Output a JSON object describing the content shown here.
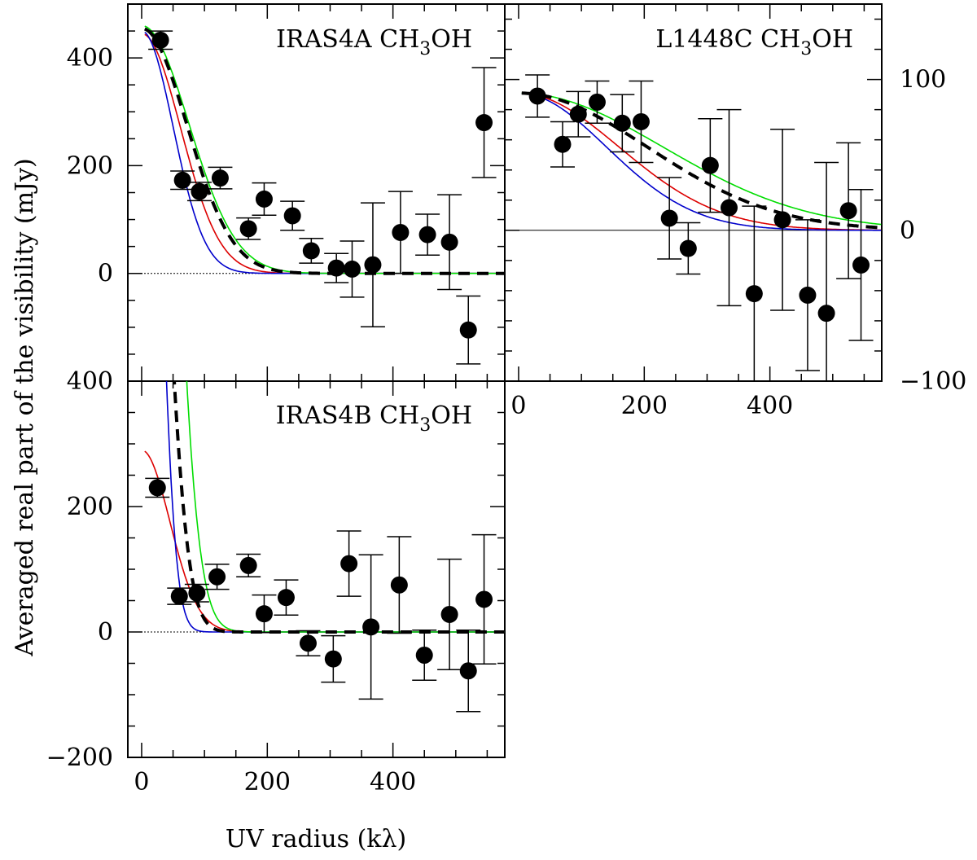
{
  "figure": {
    "ylabel": "Averaged real part of the visibility (mJy)",
    "xlabel": "UV radius (kλ)"
  },
  "colors": {
    "axes": "#000000",
    "points": "#000000",
    "model_red": "#dd0000",
    "model_blue": "#0000cc",
    "model_green": "#00dd00",
    "model_black": "#000000"
  },
  "chart_data": [
    {
      "type": "scatter",
      "panel": "top-left",
      "title_main": "IRAS4A CH",
      "title_sub": "3",
      "title_end": "OH",
      "xlim": [
        -22,
        578
      ],
      "ylim": [
        -200,
        500
      ],
      "x_ticks": [],
      "y_ticks": [
        0,
        200,
        400
      ],
      "y_tick_labels": [
        "0",
        "200",
        "400"
      ],
      "y_label_side": "left",
      "points": [
        {
          "x": 30,
          "y": 433,
          "err": 17
        },
        {
          "x": 65,
          "y": 173,
          "err": 17
        },
        {
          "x": 92,
          "y": 152,
          "err": 17
        },
        {
          "x": 125,
          "y": 177,
          "err": 20
        },
        {
          "x": 170,
          "y": 83,
          "err": 20
        },
        {
          "x": 195,
          "y": 138,
          "err": 30
        },
        {
          "x": 240,
          "y": 107,
          "err": 27
        },
        {
          "x": 270,
          "y": 42,
          "err": 23
        },
        {
          "x": 310,
          "y": 10,
          "err": 27
        },
        {
          "x": 335,
          "y": 8,
          "err": 52
        },
        {
          "x": 368,
          "y": 16,
          "err": 115
        },
        {
          "x": 412,
          "y": 76,
          "err": 76
        },
        {
          "x": 455,
          "y": 72,
          "err": 38
        },
        {
          "x": 490,
          "y": 58,
          "err": 88
        },
        {
          "x": 520,
          "y": -105,
          "err": 63
        },
        {
          "x": 545,
          "y": 280,
          "err": 102
        }
      ],
      "models": [
        {
          "name": "red",
          "amp": 445,
          "sigma": 62
        },
        {
          "name": "blue",
          "amp": 450,
          "sigma": 50
        },
        {
          "name": "green",
          "amp": 460,
          "sigma": 75
        },
        {
          "name": "black-dashed",
          "amp": 455,
          "sigma": 72
        }
      ]
    },
    {
      "type": "scatter",
      "panel": "top-right",
      "title_main": "L1448C CH",
      "title_sub": "3",
      "title_end": "OH",
      "xlim": [
        -22,
        578
      ],
      "ylim": [
        -100,
        150
      ],
      "x_ticks": [
        0,
        200,
        400
      ],
      "x_tick_labels": [
        "0",
        "200",
        "400"
      ],
      "y_ticks": [
        -100,
        0,
        100
      ],
      "y_tick_labels": [
        "−100",
        "0",
        "100"
      ],
      "y_label_side": "right",
      "points": [
        {
          "x": 30,
          "y": 89,
          "err": 14
        },
        {
          "x": 70,
          "y": 57,
          "err": 15
        },
        {
          "x": 95,
          "y": 77,
          "err": 15
        },
        {
          "x": 125,
          "y": 85,
          "err": 14
        },
        {
          "x": 165,
          "y": 71,
          "err": 19
        },
        {
          "x": 195,
          "y": 72,
          "err": 27
        },
        {
          "x": 240,
          "y": 8,
          "err": 27
        },
        {
          "x": 270,
          "y": -12,
          "err": 17
        },
        {
          "x": 305,
          "y": 43,
          "err": 31
        },
        {
          "x": 335,
          "y": 15,
          "err": 65
        },
        {
          "x": 375,
          "y": -42,
          "err": 58
        },
        {
          "x": 420,
          "y": 7,
          "err": 60
        },
        {
          "x": 460,
          "y": -43,
          "err": 50
        },
        {
          "x": 490,
          "y": -55,
          "err": 100
        },
        {
          "x": 525,
          "y": 13,
          "err": 45
        },
        {
          "x": 545,
          "y": -23,
          "err": 50
        }
      ],
      "models": [
        {
          "name": "red",
          "amp": 91,
          "sigma": 160
        },
        {
          "name": "blue",
          "amp": 91,
          "sigma": 140
        },
        {
          "name": "green",
          "amp": 91,
          "sigma": 230
        },
        {
          "name": "black-dashed",
          "amp": 91,
          "sigma": 205
        }
      ]
    },
    {
      "type": "scatter",
      "panel": "bottom-left",
      "title_main": "IRAS4B CH",
      "title_sub": "3",
      "title_end": "OH",
      "xlim": [
        -22,
        578
      ],
      "ylim": [
        -200,
        400
      ],
      "x_ticks": [
        0,
        200,
        400
      ],
      "x_tick_labels": [
        "0",
        "200",
        "400"
      ],
      "y_ticks": [
        -200,
        0,
        200,
        400
      ],
      "y_tick_labels": [
        "−200",
        "0",
        "200",
        "400"
      ],
      "y_label_side": "left",
      "points": [
        {
          "x": 25,
          "y": 230,
          "err": 15
        },
        {
          "x": 60,
          "y": 57,
          "err": 13
        },
        {
          "x": 88,
          "y": 62,
          "err": 14
        },
        {
          "x": 120,
          "y": 88,
          "err": 20
        },
        {
          "x": 170,
          "y": 106,
          "err": 18
        },
        {
          "x": 195,
          "y": 29,
          "err": 30
        },
        {
          "x": 230,
          "y": 55,
          "err": 28
        },
        {
          "x": 265,
          "y": -18,
          "err": 20
        },
        {
          "x": 305,
          "y": -43,
          "err": 37
        },
        {
          "x": 330,
          "y": 109,
          "err": 52
        },
        {
          "x": 365,
          "y": 8,
          "err": 115
        },
        {
          "x": 410,
          "y": 75,
          "err": 77
        },
        {
          "x": 450,
          "y": -37,
          "err": 40
        },
        {
          "x": 490,
          "y": 28,
          "err": 88
        },
        {
          "x": 520,
          "y": -62,
          "err": 65
        },
        {
          "x": 545,
          "y": 52,
          "err": 103
        }
      ],
      "models": [
        {
          "name": "red",
          "amp": 290,
          "sigma": 45
        },
        {
          "name": "blue",
          "amp": 1400,
          "sigma": 25
        },
        {
          "name": "green",
          "amp": 2000,
          "sigma": 40
        },
        {
          "name": "black-dashed",
          "amp": 1200,
          "sigma": 35
        }
      ]
    }
  ]
}
